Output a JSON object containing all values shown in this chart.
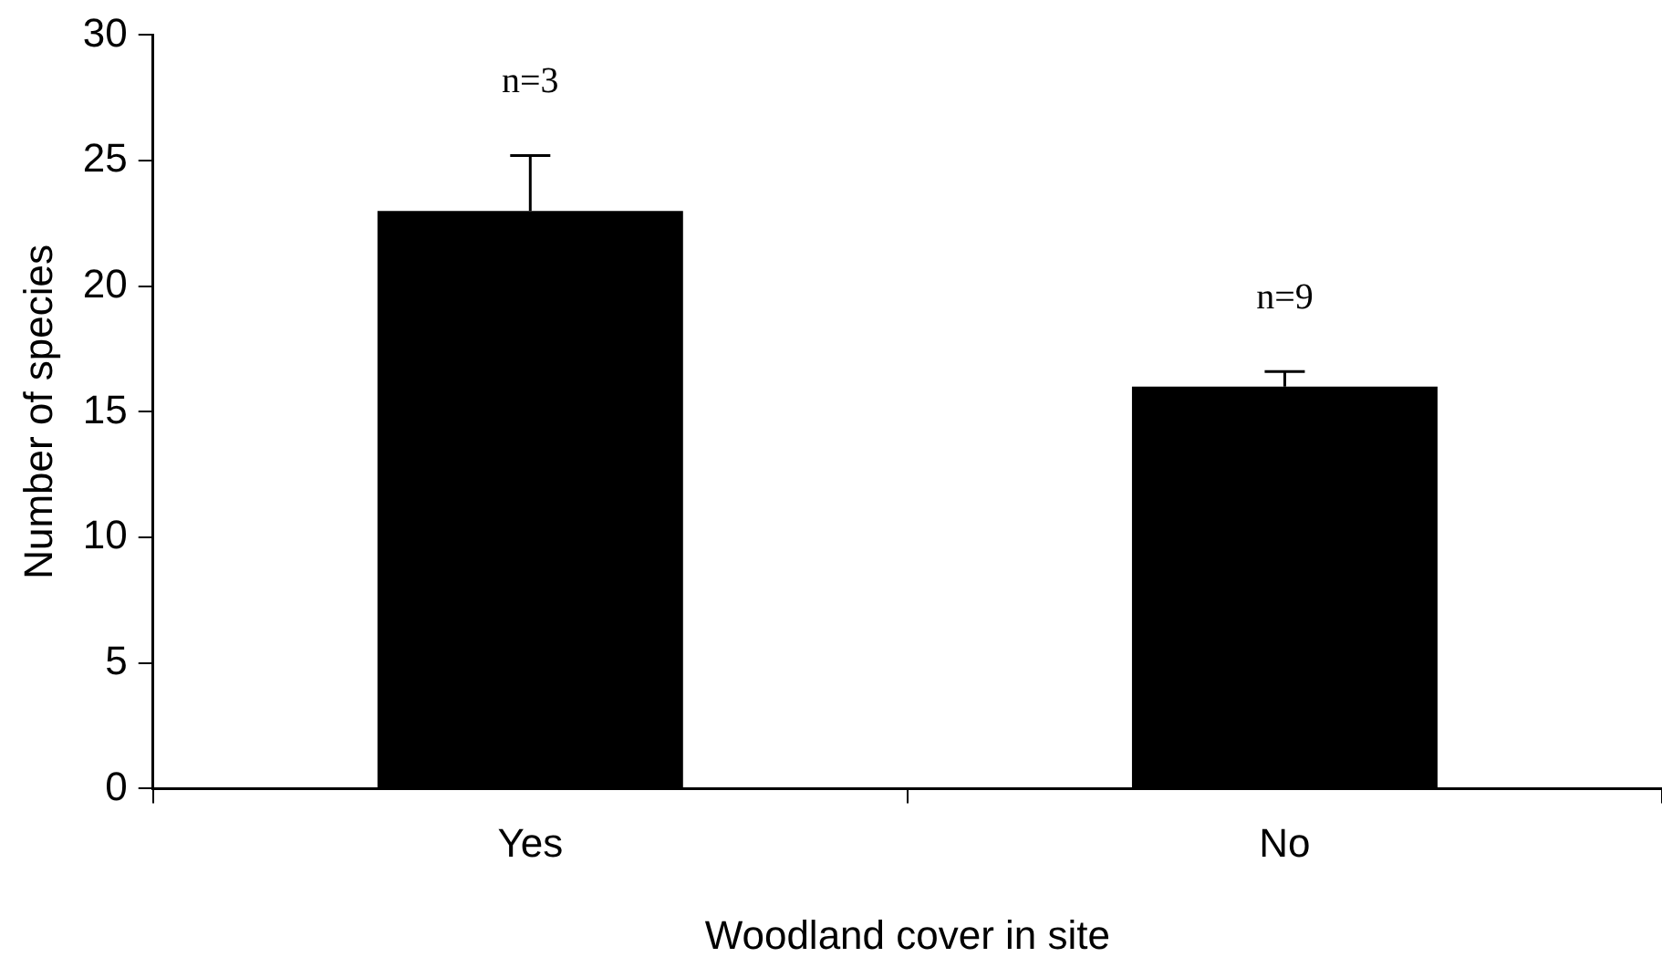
{
  "chart_data": {
    "type": "bar",
    "xlabel": "Woodland cover in site",
    "ylabel": "Number of species",
    "categories": [
      "Yes",
      "No"
    ],
    "values": [
      23,
      16
    ],
    "color": "#000000",
    "errors": [
      [
        23,
        25.2
      ],
      [
        16,
        16.6
      ]
    ],
    "ylim": [
      0,
      30
    ],
    "yticks": [
      0,
      5,
      10,
      15,
      20,
      25,
      30
    ],
    "grid": false,
    "legend": false,
    "annotations": [
      "n=3",
      "n=9"
    ]
  }
}
